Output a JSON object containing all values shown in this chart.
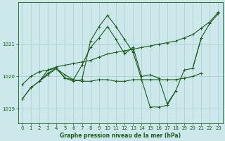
{
  "title": "Graphe pression niveau de la mer (hPa)",
  "bg_color": "#cce8ea",
  "grid_color": "#aacccc",
  "line_color": "#1a5c1a",
  "xlim": [
    -0.5,
    23.5
  ],
  "ylim": [
    1018.55,
    1022.3
  ],
  "yticks": [
    1019,
    1020,
    1021
  ],
  "xticks": [
    0,
    1,
    2,
    3,
    4,
    5,
    6,
    7,
    8,
    9,
    10,
    11,
    12,
    13,
    14,
    15,
    16,
    17,
    18,
    19,
    20,
    21,
    22,
    23
  ],
  "lines": [
    {
      "x": [
        0,
        1,
        2,
        3,
        4,
        5,
        6,
        7,
        8,
        9,
        10,
        11,
        12,
        13,
        14,
        15,
        16,
        17,
        18,
        19,
        20,
        21,
        22,
        23
      ],
      "y": [
        1019.75,
        1020.0,
        1020.15,
        1020.2,
        1020.3,
        1020.35,
        1020.4,
        1020.45,
        1020.5,
        1020.6,
        1020.7,
        1020.75,
        1020.8,
        1020.85,
        1020.9,
        1020.95,
        1021.0,
        1021.05,
        1021.1,
        1021.2,
        1021.3,
        1021.5,
        1021.7,
        1022.0
      ]
    },
    {
      "x": [
        0,
        1,
        2,
        3,
        4,
        5,
        6,
        7,
        8,
        9,
        10,
        11,
        12,
        13,
        14,
        15,
        16,
        17,
        18,
        19,
        20,
        21,
        22,
        23
      ],
      "y": [
        1019.3,
        1019.65,
        1019.85,
        1020.05,
        1020.25,
        1019.95,
        1019.85,
        1019.9,
        1021.1,
        1021.55,
        1021.9,
        1021.55,
        1021.15,
        1020.75,
        1019.9,
        1019.05,
        1019.05,
        1019.1,
        1019.55,
        null,
        null,
        null,
        null,
        null
      ]
    },
    {
      "x": [
        0,
        1,
        2,
        3,
        4,
        5,
        6,
        7,
        8,
        9,
        10,
        11,
        12,
        13,
        14,
        15,
        16,
        17,
        18,
        19,
        20,
        21,
        22,
        23
      ],
      "y": [
        1019.3,
        1019.65,
        1019.85,
        1020.2,
        1020.25,
        1020.05,
        1019.9,
        1019.85,
        1019.85,
        1019.9,
        1019.9,
        1019.85,
        1019.85,
        1019.9,
        1019.9,
        1019.9,
        1019.9,
        1019.9,
        1019.9,
        1019.95,
        1020.0,
        1020.1,
        null,
        null
      ]
    },
    {
      "x": [
        2,
        3,
        4,
        5,
        6,
        7,
        8,
        9,
        10,
        11,
        12,
        13,
        14,
        15,
        16,
        17,
        18,
        19,
        20,
        21
      ],
      "y": [
        1019.85,
        1020.1,
        1020.25,
        1019.95,
        1019.9,
        1020.35,
        1020.9,
        1021.2,
        1021.55,
        1021.15,
        1020.7,
        1020.9,
        1020.0,
        1020.05,
        1019.95,
        1019.15,
        1019.55,
        1020.2,
        1020.25,
        1021.2
      ]
    },
    {
      "x": [
        20,
        21,
        22,
        23
      ],
      "y": [
        1020.25,
        1021.2,
        1021.65,
        1021.95
      ]
    }
  ]
}
